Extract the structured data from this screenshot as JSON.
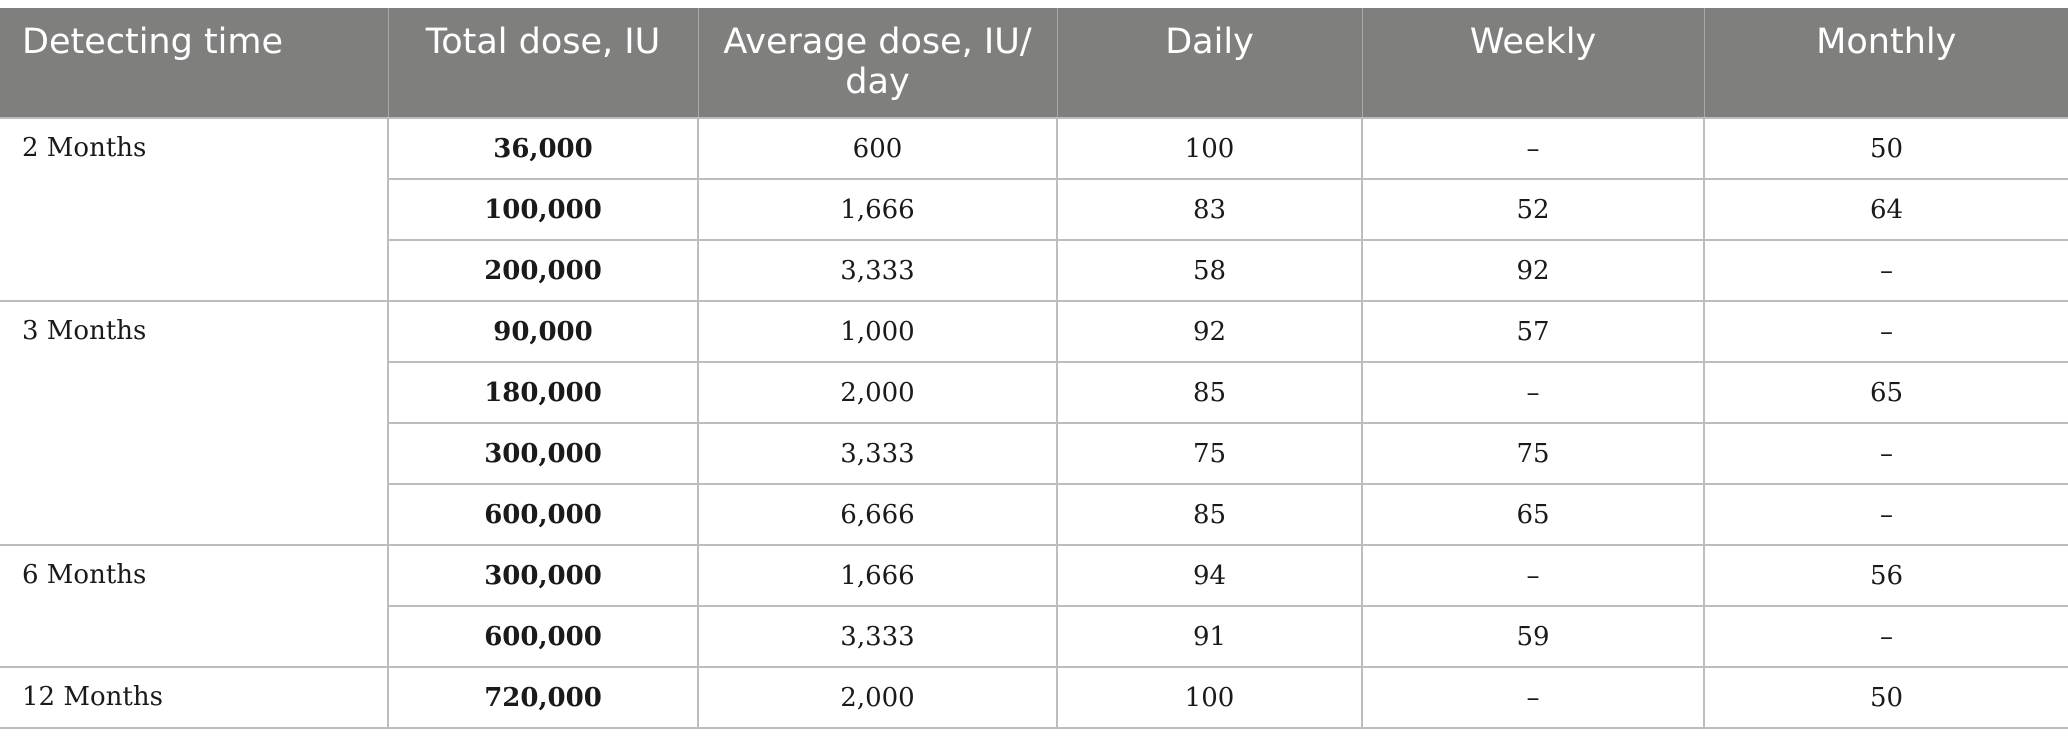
{
  "table": {
    "headers": [
      "Detecting time",
      "Total dose, IU",
      "Average dose, IU/\nday",
      "Daily",
      "Weekly",
      "Monthly"
    ],
    "groups": [
      {
        "time": "2 Months",
        "rows": [
          {
            "total": "36,000",
            "average": "600",
            "daily": "100",
            "weekly": "–",
            "monthly": "50"
          },
          {
            "total": "100,000",
            "average": "1,666",
            "daily": "83",
            "weekly": "52",
            "monthly": "64"
          },
          {
            "total": "200,000",
            "average": "3,333",
            "daily": "58",
            "weekly": "92",
            "monthly": "–"
          }
        ]
      },
      {
        "time": "3 Months",
        "rows": [
          {
            "total": "90,000",
            "average": "1,000",
            "daily": "92",
            "weekly": "57",
            "monthly": "–"
          },
          {
            "total": "180,000",
            "average": "2,000",
            "daily": "85",
            "weekly": "–",
            "monthly": "65"
          },
          {
            "total": "300,000",
            "average": "3,333",
            "daily": "75",
            "weekly": "75",
            "monthly": "–"
          },
          {
            "total": "600,000",
            "average": "6,666",
            "daily": "85",
            "weekly": "65",
            "monthly": "–"
          }
        ]
      },
      {
        "time": "6 Months",
        "rows": [
          {
            "total": "300,000",
            "average": "1,666",
            "daily": "94",
            "weekly": "–",
            "monthly": "56"
          },
          {
            "total": "600,000",
            "average": "3,333",
            "daily": "91",
            "weekly": "59",
            "monthly": "–"
          }
        ]
      },
      {
        "time": "12 Months",
        "rows": [
          {
            "total": "720,000",
            "average": "2,000",
            "daily": "100",
            "weekly": "–",
            "monthly": "50"
          }
        ]
      }
    ]
  },
  "colors": {
    "header_bg": "#7f807e",
    "header_text": "#ffffff",
    "grid_line": "#bdbdbd"
  }
}
